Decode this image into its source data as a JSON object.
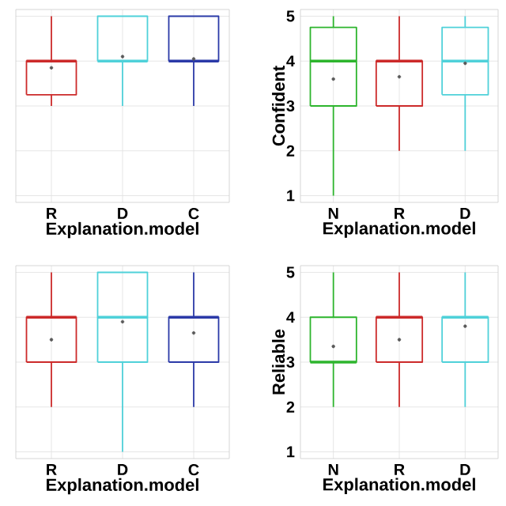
{
  "chart_data": [
    {
      "type": "box",
      "xlabel": "Explanation.model",
      "categories": [
        "R",
        "D",
        "C"
      ],
      "colors": [
        "#cc2a2a",
        "#4fd1d9",
        "#2b3aa8"
      ],
      "boxes": [
        {
          "low": 3,
          "q1": 3.25,
          "median": 4,
          "q3": 4,
          "high": 5,
          "mean": 3.85
        },
        {
          "low": 3,
          "q1": 4,
          "median": 4,
          "q3": 5,
          "high": 5,
          "mean": 4.1
        },
        {
          "low": 3,
          "q1": 4,
          "median": 4,
          "q3": 5,
          "high": 5,
          "mean": 4.05
        }
      ],
      "ylim": [
        0.85,
        5.15
      ],
      "yticks": [
        1,
        2,
        3,
        4,
        5
      ],
      "tick_labels": "x",
      "grid": true
    },
    {
      "type": "box",
      "xlabel": "Explanation.model",
      "ylabel": "Confident",
      "categories": [
        "N",
        "R",
        "D"
      ],
      "colors": [
        "#2db52d",
        "#cc2a2a",
        "#4fd1d9"
      ],
      "boxes": [
        {
          "low": 1,
          "q1": 3,
          "median": 4,
          "q3": 4.75,
          "high": 5,
          "mean": 3.6
        },
        {
          "low": 2,
          "q1": 3,
          "median": 4,
          "q3": 4,
          "high": 5,
          "mean": 3.65
        },
        {
          "low": 2,
          "q1": 3.25,
          "median": 4,
          "q3": 4.75,
          "high": 5,
          "mean": 3.95
        }
      ],
      "ylim": [
        0.85,
        5.15
      ],
      "yticks": [
        1,
        2,
        3,
        4,
        5
      ],
      "grid": true
    },
    {
      "type": "box",
      "xlabel": "Explanation.model",
      "categories": [
        "R",
        "D",
        "C"
      ],
      "colors": [
        "#cc2a2a",
        "#4fd1d9",
        "#2b3aa8"
      ],
      "boxes": [
        {
          "low": 2,
          "q1": 3,
          "median": 4,
          "q3": 4,
          "high": 5,
          "mean": 3.5
        },
        {
          "low": 1,
          "q1": 3,
          "median": 4,
          "q3": 5,
          "high": 5,
          "mean": 3.9
        },
        {
          "low": 2,
          "q1": 3,
          "median": 4,
          "q3": 4,
          "high": 5,
          "mean": 3.65
        }
      ],
      "ylim": [
        0.85,
        5.15
      ],
      "yticks": [
        1,
        2,
        3,
        4,
        5
      ],
      "tick_labels": "x",
      "grid": true
    },
    {
      "type": "box",
      "xlabel": "Explanation.model",
      "ylabel": "Reliable",
      "categories": [
        "N",
        "R",
        "D"
      ],
      "colors": [
        "#2db52d",
        "#cc2a2a",
        "#4fd1d9"
      ],
      "boxes": [
        {
          "low": 2,
          "q1": 3,
          "median": 3,
          "q3": 4,
          "high": 5,
          "mean": 3.35
        },
        {
          "low": 2,
          "q1": 3,
          "median": 4,
          "q3": 4,
          "high": 5,
          "mean": 3.5
        },
        {
          "low": 2,
          "q1": 3,
          "median": 4,
          "q3": 4,
          "high": 5,
          "mean": 3.8
        }
      ],
      "ylim": [
        0.85,
        5.15
      ],
      "yticks": [
        1,
        2,
        3,
        4,
        5
      ],
      "grid": true
    }
  ]
}
